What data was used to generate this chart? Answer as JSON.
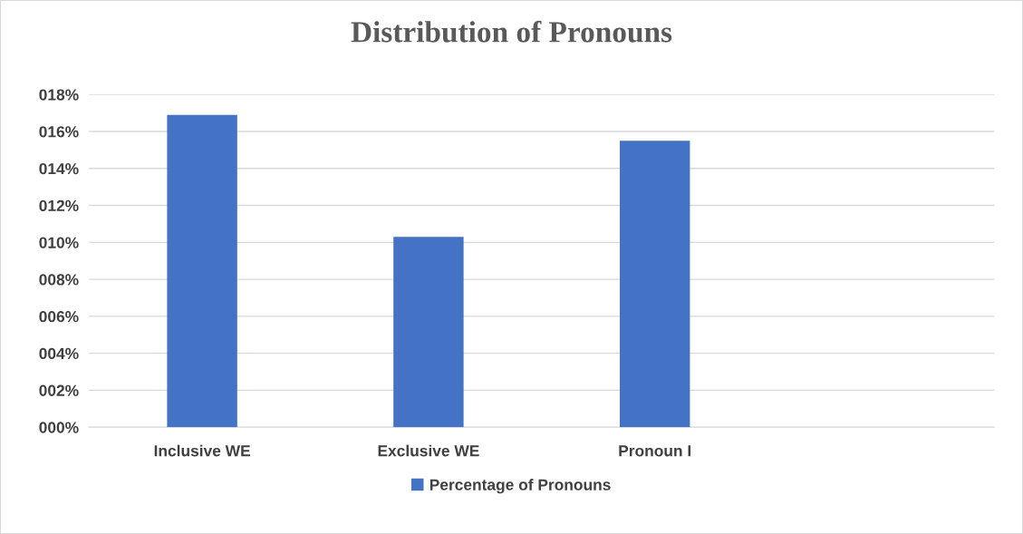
{
  "chart_data": {
    "type": "bar",
    "title": "Distribution of Pronouns",
    "categories": [
      "Inclusive WE",
      "Exclusive WE",
      "Pronoun I",
      null
    ],
    "series": [
      {
        "name": "Percentage of Pronouns",
        "color": "#4472c4",
        "values": [
          16.9,
          10.3,
          15.5,
          null
        ]
      }
    ],
    "ylim": [
      0,
      18
    ],
    "yticks": [
      {
        "value": 0,
        "label": "000%"
      },
      {
        "value": 2,
        "label": "002%"
      },
      {
        "value": 4,
        "label": "004%"
      },
      {
        "value": 6,
        "label": "006%"
      },
      {
        "value": 8,
        "label": "008%"
      },
      {
        "value": 10,
        "label": "010%"
      },
      {
        "value": 12,
        "label": "012%"
      },
      {
        "value": 14,
        "label": "014%"
      },
      {
        "value": 16,
        "label": "016%"
      },
      {
        "value": 18,
        "label": "018%"
      }
    ],
    "grid": "y",
    "legend": "bottom"
  }
}
